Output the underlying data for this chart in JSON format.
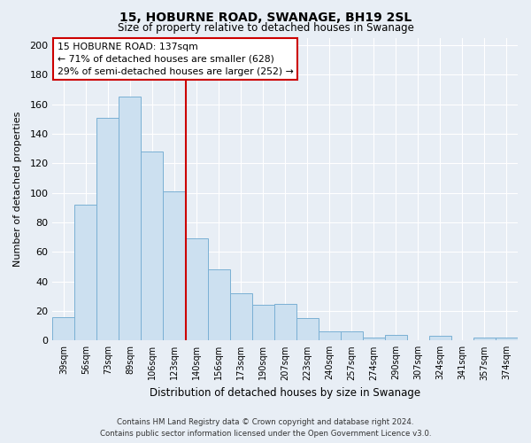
{
  "title": "15, HOBURNE ROAD, SWANAGE, BH19 2SL",
  "subtitle": "Size of property relative to detached houses in Swanage",
  "xlabel": "Distribution of detached houses by size in Swanage",
  "ylabel": "Number of detached properties",
  "bin_labels": [
    "39sqm",
    "56sqm",
    "73sqm",
    "89sqm",
    "106sqm",
    "123sqm",
    "140sqm",
    "156sqm",
    "173sqm",
    "190sqm",
    "207sqm",
    "223sqm",
    "240sqm",
    "257sqm",
    "274sqm",
    "290sqm",
    "307sqm",
    "324sqm",
    "341sqm",
    "357sqm",
    "374sqm"
  ],
  "bar_heights": [
    16,
    92,
    151,
    165,
    128,
    101,
    69,
    48,
    32,
    24,
    25,
    15,
    6,
    6,
    2,
    4,
    0,
    3,
    0,
    2,
    2
  ],
  "bar_color": "#cce0f0",
  "bar_edge_color": "#7ab0d4",
  "vline_color": "#cc0000",
  "vline_position": 6,
  "ylim": [
    0,
    205
  ],
  "yticks": [
    0,
    20,
    40,
    60,
    80,
    100,
    120,
    140,
    160,
    180,
    200
  ],
  "annotation_title": "15 HOBURNE ROAD: 137sqm",
  "annotation_line1": "← 71% of detached houses are smaller (628)",
  "annotation_line2": "29% of semi-detached houses are larger (252) →",
  "annotation_box_facecolor": "#ffffff",
  "annotation_box_edgecolor": "#cc0000",
  "footer1": "Contains HM Land Registry data © Crown copyright and database right 2024.",
  "footer2": "Contains public sector information licensed under the Open Government Licence v3.0.",
  "background_color": "#e8eef5",
  "grid_color": "#ffffff",
  "title_fontsize": 10,
  "subtitle_fontsize": 8.5
}
